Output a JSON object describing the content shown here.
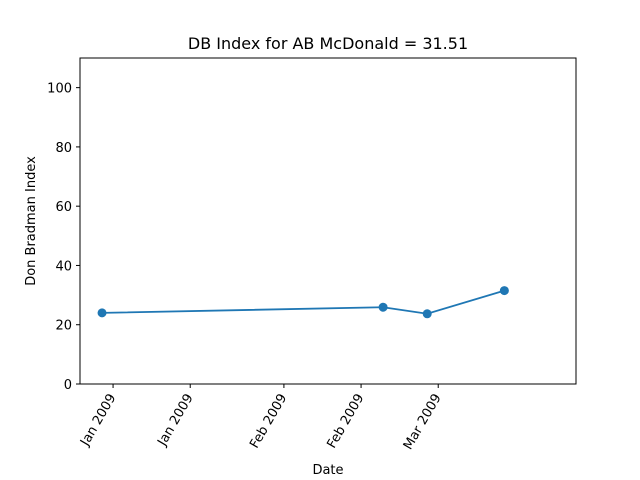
{
  "chart_data": {
    "type": "line",
    "title": "DB Index for AB McDonald = 31.51",
    "xlabel": "Date",
    "ylabel": "Don Bradman Index",
    "ylim": [
      0,
      110
    ],
    "xlim": [
      "2008-12-26",
      "2009-03-26"
    ],
    "yticks": [
      0,
      20,
      40,
      60,
      80,
      100
    ],
    "xticks": [
      {
        "value": "2009-01-01",
        "label": "Jan 2009"
      },
      {
        "value": "2009-01-15",
        "label": "Jan 2009"
      },
      {
        "value": "2009-02-01",
        "label": "Feb 2009"
      },
      {
        "value": "2009-02-15",
        "label": "Feb 2009"
      },
      {
        "value": "2009-03-01",
        "label": "Mar 2009"
      }
    ],
    "series": [
      {
        "color": "#1f77b4",
        "points": [
          {
            "x": "2008-12-30",
            "y": 24.0
          },
          {
            "x": "2009-02-19",
            "y": 25.9
          },
          {
            "x": "2009-02-27",
            "y": 23.7
          },
          {
            "x": "2009-03-13",
            "y": 31.51
          }
        ]
      }
    ],
    "grid": false,
    "legend": "none"
  }
}
